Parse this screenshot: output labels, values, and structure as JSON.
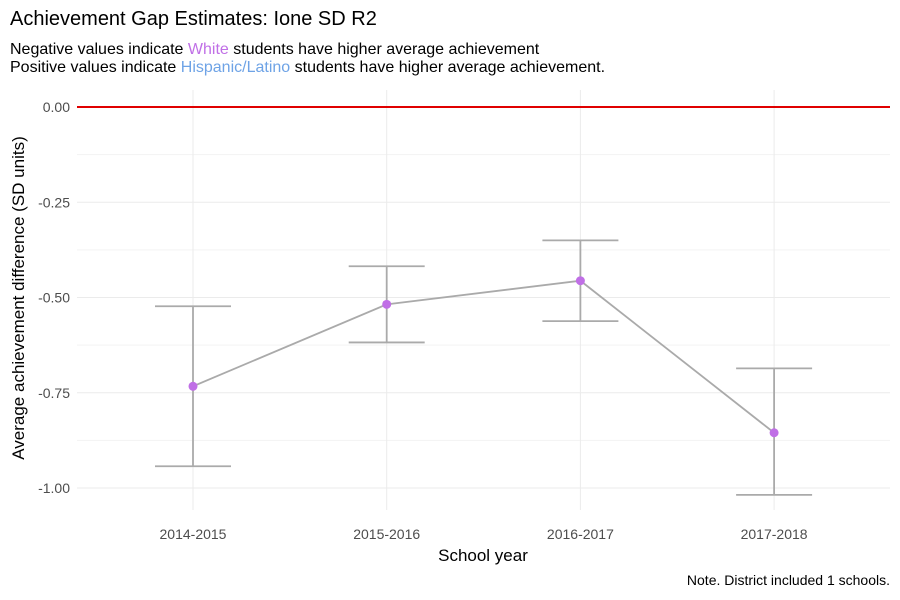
{
  "chart_data": {
    "type": "line",
    "title": "Achievement Gap Estimates: Ione SD R2",
    "subtitle": {
      "line1": {
        "before": "Negative values indicate ",
        "highlight": "White",
        "after": " students have higher average achievement"
      },
      "line2": {
        "before": "Positive values indicate ",
        "highlight": "Hispanic/Latino",
        "after": " students have higher average achievement."
      }
    },
    "xlabel": "School year",
    "ylabel": "Average achievement difference (SD units)",
    "categories": [
      "2014-2015",
      "2015-2016",
      "2016-2017",
      "2017-2018"
    ],
    "series": [
      {
        "values": [
          -0.733,
          -0.518,
          -0.456,
          -0.855
        ],
        "lower": [
          -0.943,
          -0.618,
          -0.562,
          -1.018
        ],
        "upper": [
          -0.523,
          -0.418,
          -0.35,
          -0.686
        ]
      }
    ],
    "ylim": [
      -1.05,
      0.03
    ],
    "yticks": [
      0.0,
      -0.25,
      -0.5,
      -0.75,
      -1.0
    ],
    "ytick_labels": [
      "0.00",
      "-0.25",
      "-0.50",
      "-0.75",
      "-1.00"
    ],
    "reference_line": 0,
    "grid": true,
    "note": "Note. District included 1 schools.",
    "colors": {
      "point": "#c06fe6",
      "line": "#aaaaaa",
      "errorbar": "#aaaaaa",
      "reference": "#e00000",
      "grid": "#ebebeb",
      "white_label": "#c06fe6",
      "hispanic_label": "#6ea3e6"
    }
  }
}
